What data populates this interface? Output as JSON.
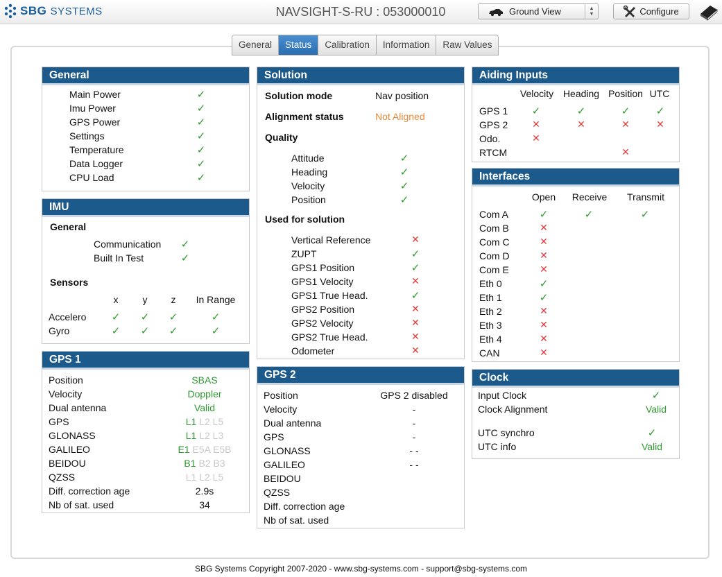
{
  "app": {
    "logo_text_bold": "SBG",
    "logo_text_thin": "SYSTEMS",
    "device_title": "NAVSIGHT-S-RU : 053000010",
    "view_select": "Ground View",
    "configure_label": "Configure"
  },
  "tabs": [
    "General",
    "Status",
    "Calibration",
    "Information",
    "Raw Values"
  ],
  "active_tab": "Status",
  "general": {
    "title": "General",
    "items": [
      {
        "label": "Main Power",
        "ok": true
      },
      {
        "label": "Imu Power",
        "ok": true
      },
      {
        "label": "GPS Power",
        "ok": true
      },
      {
        "label": "Settings",
        "ok": true
      },
      {
        "label": "Temperature",
        "ok": true
      },
      {
        "label": "Data Logger",
        "ok": true
      },
      {
        "label": "CPU Load",
        "ok": true
      }
    ]
  },
  "imu": {
    "title": "IMU",
    "general_heading": "General",
    "general_items": [
      {
        "label": "Communication",
        "ok": true
      },
      {
        "label": "Built In Test",
        "ok": true
      }
    ],
    "sensors_heading": "Sensors",
    "sensor_columns": [
      "x",
      "y",
      "z",
      "In Range"
    ],
    "sensors": [
      {
        "label": "Accelero",
        "x": true,
        "y": true,
        "z": true,
        "range": true
      },
      {
        "label": "Gyro",
        "x": true,
        "y": true,
        "z": true,
        "range": true
      }
    ]
  },
  "gps1": {
    "title": "GPS 1",
    "rows": [
      {
        "label": "Position",
        "value": "SBAS"
      },
      {
        "label": "Velocity",
        "value": "Doppler"
      },
      {
        "label": "Dual antenna",
        "value": "Valid"
      },
      {
        "label": "GPS",
        "bands": [
          "L1",
          "L2",
          "L5"
        ],
        "active": [
          true,
          false,
          false
        ]
      },
      {
        "label": "GLONASS",
        "bands": [
          "L1",
          "L2",
          "L3"
        ],
        "active": [
          true,
          false,
          false
        ]
      },
      {
        "label": "GALILEO",
        "bands": [
          "E1",
          "E5A",
          "E5B"
        ],
        "active": [
          true,
          false,
          false
        ]
      },
      {
        "label": "BEIDOU",
        "bands": [
          "B1",
          "B2",
          "B3"
        ],
        "active": [
          true,
          false,
          false
        ]
      },
      {
        "label": "QZSS",
        "bands": [
          "L1",
          "L2",
          "L5"
        ],
        "active": [
          false,
          false,
          false
        ]
      },
      {
        "label": "Diff. correction age",
        "value": "2.9s"
      },
      {
        "label": "Nb of sat. used",
        "value": "34"
      }
    ]
  },
  "solution": {
    "title": "Solution",
    "mode_label": "Solution mode",
    "mode_value": "Nav position",
    "alignment_label": "Alignment status",
    "alignment_value": "Not Aligned",
    "quality_heading": "Quality",
    "quality": [
      {
        "label": "Attitude",
        "ok": true
      },
      {
        "label": "Heading",
        "ok": true
      },
      {
        "label": "Velocity",
        "ok": true
      },
      {
        "label": "Position",
        "ok": true
      }
    ],
    "used_heading": "Used for solution",
    "used": [
      {
        "label": "Vertical Reference",
        "ok": false
      },
      {
        "label": "ZUPT",
        "ok": true
      },
      {
        "label": "GPS1 Position",
        "ok": true
      },
      {
        "label": "GPS1 Velocity",
        "ok": false
      },
      {
        "label": "GPS1 True Head.",
        "ok": true
      },
      {
        "label": "GPS2 Position",
        "ok": false
      },
      {
        "label": "GPS2 Velocity",
        "ok": false
      },
      {
        "label": "GPS2 True Head.",
        "ok": false
      },
      {
        "label": "Odometer",
        "ok": false
      }
    ]
  },
  "gps2": {
    "title": "GPS 2",
    "rows": [
      {
        "label": "Position",
        "value": "GPS 2 disabled"
      },
      {
        "label": "Velocity",
        "value": "-"
      },
      {
        "label": "Dual antenna",
        "value": "-"
      },
      {
        "label": "GPS",
        "value": "-"
      },
      {
        "label": "GLONASS",
        "value": "- -"
      },
      {
        "label": "GALILEO",
        "value": "- -"
      },
      {
        "label": "BEIDOU",
        "value": ""
      },
      {
        "label": "QZSS",
        "value": ""
      },
      {
        "label": "Diff. correction age",
        "value": ""
      },
      {
        "label": "Nb of sat. used",
        "value": ""
      }
    ]
  },
  "aiding": {
    "title": "Aiding Inputs",
    "columns": [
      "Velocity",
      "Heading",
      "Position",
      "UTC"
    ],
    "rows": [
      {
        "label": "GPS 1",
        "cells": [
          "ok",
          "ok",
          "ok",
          "ok"
        ]
      },
      {
        "label": "GPS 2",
        "cells": [
          "ko",
          "ko",
          "ko",
          "ko"
        ]
      },
      {
        "label": "Odo.",
        "cells": [
          "ko",
          "",
          "",
          ""
        ]
      },
      {
        "label": "RTCM",
        "cells": [
          "",
          "",
          "ko",
          ""
        ]
      }
    ]
  },
  "interfaces": {
    "title": "Interfaces",
    "columns": [
      "Open",
      "Receive",
      "Transmit"
    ],
    "rows": [
      {
        "label": "Com A",
        "cells": [
          "ok",
          "ok",
          "ok"
        ]
      },
      {
        "label": "Com B",
        "cells": [
          "ko",
          "",
          ""
        ]
      },
      {
        "label": "Com C",
        "cells": [
          "ko",
          "",
          ""
        ]
      },
      {
        "label": "Com D",
        "cells": [
          "ko",
          "",
          ""
        ]
      },
      {
        "label": "Com E",
        "cells": [
          "ko",
          "",
          ""
        ]
      },
      {
        "label": "Eth 0",
        "cells": [
          "ok",
          "",
          ""
        ]
      },
      {
        "label": "Eth 1",
        "cells": [
          "ok",
          "",
          ""
        ]
      },
      {
        "label": "Eth 2",
        "cells": [
          "ko",
          "",
          ""
        ]
      },
      {
        "label": "Eth 3",
        "cells": [
          "ko",
          "",
          ""
        ]
      },
      {
        "label": "Eth 4",
        "cells": [
          "ko",
          "",
          ""
        ]
      },
      {
        "label": "CAN",
        "cells": [
          "ko",
          "",
          ""
        ]
      }
    ]
  },
  "clock": {
    "title": "Clock",
    "input_clock_label": "Input Clock",
    "input_clock_ok": true,
    "alignment_label": "Clock Alignment",
    "alignment_value": "Valid",
    "utc_sync_label": "UTC synchro",
    "utc_sync_ok": true,
    "utc_info_label": "UTC info",
    "utc_info_value": "Valid"
  },
  "footer": "SBG Systems Copyright 2007-2020 - www.sbg-systems.com - support@sbg-systems.com",
  "colors": {
    "ok": "#2f9a2f",
    "ko": "#e23b3b",
    "header": "#1d5a8c",
    "warning": "#e88a3a"
  },
  "symbols": {
    "ok": "✓",
    "ko": "✕"
  }
}
